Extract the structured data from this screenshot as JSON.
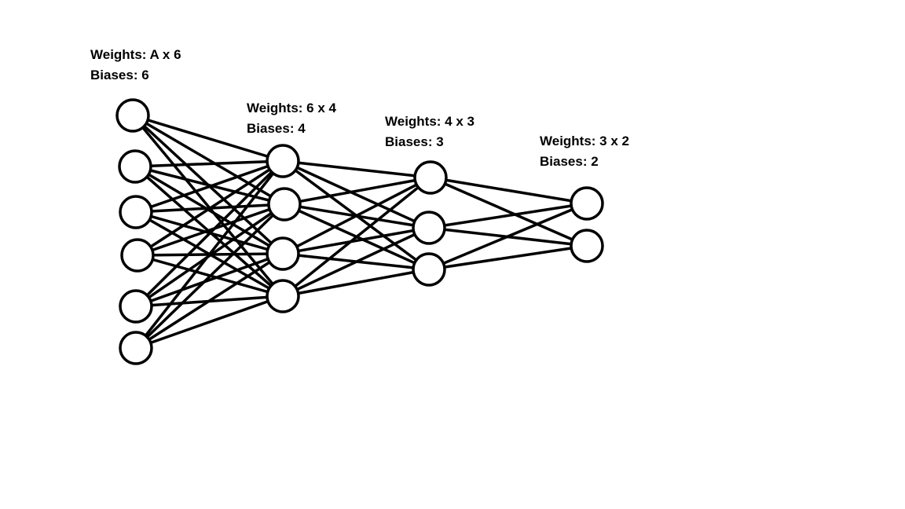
{
  "diagram": {
    "layers": [
      {
        "neurons": 6,
        "weights_label": "Weights: A x 6",
        "biases_label": "Biases: 6"
      },
      {
        "neurons": 4,
        "weights_label": "Weights: 6 x 4",
        "biases_label": "Biases: 4"
      },
      {
        "neurons": 3,
        "weights_label": "Weights: 4 x 3",
        "biases_label": "Biases: 3"
      },
      {
        "neurons": 2,
        "weights_label": "Weights: 3 x 2",
        "biases_label": "Biases: 2"
      }
    ],
    "connectivity": "fully-connected",
    "stroke_color": "#000000",
    "fill_color": "#ffffff"
  }
}
